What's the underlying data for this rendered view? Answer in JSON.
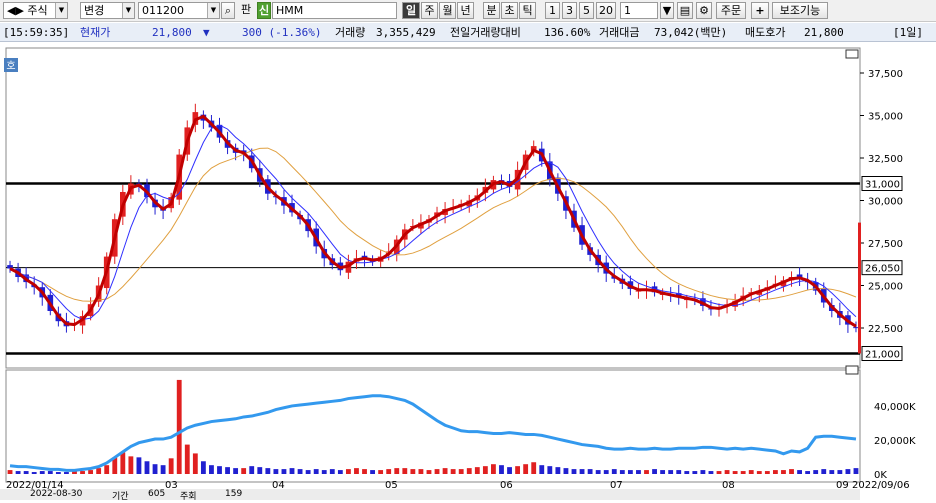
{
  "toolbar": {
    "market": "주식",
    "change_label": "변경",
    "code": "011200",
    "pan_label": "판",
    "sin_badge": "신",
    "stock_name": "HMM",
    "periods": [
      "일",
      "주",
      "월",
      "년",
      "분",
      "초",
      "틱"
    ],
    "selected_period": "일",
    "intervals": [
      "1",
      "3",
      "5",
      "20"
    ],
    "interval_value": "1",
    "order_label": "주문",
    "plus_label": "+",
    "aux_label": "보조기능"
  },
  "infobar": {
    "time": "[15:59:35]",
    "price_label": "현재가",
    "price": "21,800",
    "change_arrow": "▼",
    "change": "300 (-1.36%)",
    "volume_label": "거래량",
    "volume": "3,355,429",
    "prev_vol_label": "전일거래량대비",
    "prev_vol_ratio": "136.60%",
    "amount_label": "거래대금",
    "amount": "73,042(백만)",
    "ask_label": "매도호가",
    "ask": "21,800",
    "period_badge": "[1일]"
  },
  "chart_data": {
    "type": "candlestick",
    "title": "",
    "yticks": [
      "37,500",
      "35,000",
      "32,500",
      "30,000",
      "27,500",
      "25,000",
      "22,500"
    ],
    "ylim": [
      20500,
      38500
    ],
    "hlines": [
      {
        "label": "31,000",
        "value": 31000,
        "color": "#000000"
      },
      {
        "label": "26,050",
        "value": 26050,
        "color": "#000000"
      },
      {
        "label": "21,000",
        "value": 21000,
        "color": "#000000"
      }
    ],
    "volume_ticks": [
      "40,000K",
      "20,000K",
      "0K"
    ],
    "x_labels": [
      "2022/01/14",
      "03",
      "04",
      "05",
      "06",
      "07",
      "08",
      "09",
      "2022/09/06"
    ],
    "close": [
      26000,
      25500,
      25200,
      24900,
      24300,
      23500,
      22900,
      22600,
      22800,
      23200,
      23900,
      25000,
      26700,
      28900,
      30500,
      31000,
      30800,
      30200,
      29600,
      29400,
      30200,
      32700,
      34300,
      35200,
      34700,
      34300,
      33700,
      33100,
      32800,
      32800,
      31900,
      31100,
      30400,
      30200,
      29700,
      29300,
      28900,
      28200,
      27300,
      26600,
      26200,
      25900,
      26400,
      26600,
      26600,
      26400,
      26700,
      27000,
      27700,
      28300,
      28500,
      28700,
      28900,
      29300,
      29500,
      29600,
      29800,
      30000,
      30300,
      30800,
      31200,
      31000,
      30800,
      31800,
      32700,
      33200,
      32300,
      31200,
      30400,
      29400,
      28400,
      27400,
      26800,
      26200,
      25700,
      25400,
      25100,
      24800,
      24700,
      24800,
      24600,
      24500,
      24400,
      24300,
      24200,
      24100,
      23800,
      23600,
      23700,
      23900,
      24100,
      24400,
      24600,
      24700,
      24900,
      25100,
      25300,
      25500,
      25400,
      25200,
      24700,
      24000,
      23500,
      23100,
      22700,
      22500
    ],
    "volumes": [
      0.04,
      0.03,
      0.03,
      0.02,
      0.03,
      0.03,
      0.02,
      0.02,
      0.03,
      0.03,
      0.04,
      0.06,
      0.09,
      0.17,
      0.22,
      0.18,
      0.17,
      0.13,
      0.1,
      0.09,
      0.16,
      0.96,
      0.3,
      0.21,
      0.13,
      0.09,
      0.08,
      0.07,
      0.06,
      0.06,
      0.08,
      0.07,
      0.06,
      0.05,
      0.05,
      0.06,
      0.05,
      0.04,
      0.05,
      0.04,
      0.05,
      0.04,
      0.05,
      0.06,
      0.05,
      0.04,
      0.04,
      0.05,
      0.06,
      0.06,
      0.05,
      0.05,
      0.04,
      0.05,
      0.06,
      0.05,
      0.05,
      0.06,
      0.07,
      0.08,
      0.1,
      0.09,
      0.07,
      0.08,
      0.1,
      0.12,
      0.09,
      0.08,
      0.07,
      0.06,
      0.05,
      0.05,
      0.05,
      0.04,
      0.04,
      0.05,
      0.04,
      0.04,
      0.04,
      0.04,
      0.05,
      0.04,
      0.04,
      0.04,
      0.03,
      0.03,
      0.04,
      0.03,
      0.03,
      0.04,
      0.03,
      0.03,
      0.04,
      0.03,
      0.03,
      0.04,
      0.04,
      0.05,
      0.04,
      0.03,
      0.04,
      0.05,
      0.04,
      0.04,
      0.05,
      0.06
    ],
    "obv": [
      0.09,
      0.08,
      0.08,
      0.07,
      0.06,
      0.05,
      0.05,
      0.04,
      0.04,
      0.05,
      0.06,
      0.08,
      0.12,
      0.18,
      0.24,
      0.3,
      0.34,
      0.36,
      0.38,
      0.38,
      0.4,
      0.45,
      0.5,
      0.53,
      0.55,
      0.57,
      0.58,
      0.59,
      0.6,
      0.62,
      0.63,
      0.65,
      0.67,
      0.7,
      0.72,
      0.74,
      0.75,
      0.76,
      0.77,
      0.78,
      0.79,
      0.8,
      0.82,
      0.83,
      0.84,
      0.85,
      0.85,
      0.84,
      0.82,
      0.8,
      0.76,
      0.7,
      0.64,
      0.58,
      0.53,
      0.5,
      0.47,
      0.46,
      0.46,
      0.45,
      0.44,
      0.44,
      0.45,
      0.44,
      0.43,
      0.43,
      0.42,
      0.4,
      0.38,
      0.36,
      0.34,
      0.32,
      0.31,
      0.3,
      0.28,
      0.27,
      0.27,
      0.28,
      0.27,
      0.27,
      0.28,
      0.27,
      0.27,
      0.28,
      0.28,
      0.28,
      0.29,
      0.29,
      0.28,
      0.27,
      0.28,
      0.27,
      0.28,
      0.27,
      0.26,
      0.25,
      0.22,
      0.25,
      0.24,
      0.28,
      0.4,
      0.41,
      0.41,
      0.4,
      0.39,
      0.38
    ]
  },
  "bottom": {
    "date": "2022-08-30",
    "period_label": "기간",
    "count": "605",
    "unit": "주회",
    "bars": "159"
  },
  "colors": {
    "up": "#e02020",
    "down": "#2020d0",
    "ma5": "#c00000",
    "ma20": "#3030ff",
    "ma60": "#e0a040",
    "obv": "#3399ee"
  }
}
